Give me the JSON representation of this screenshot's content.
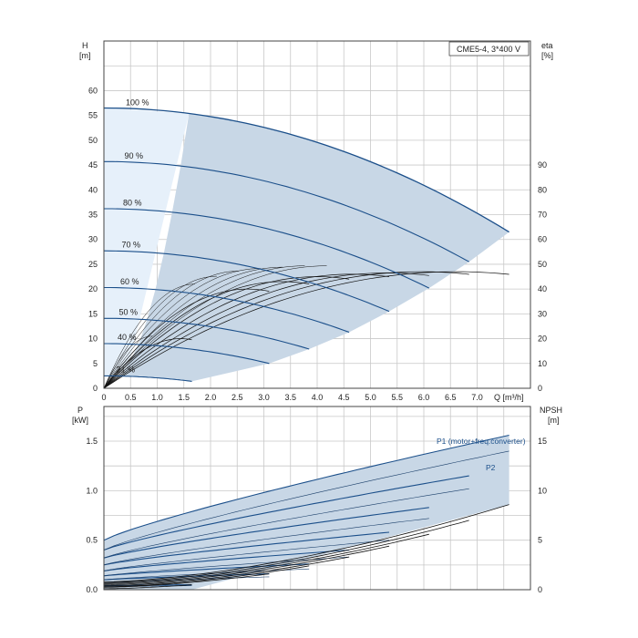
{
  "chart_data": [
    {
      "type": "line",
      "title": "CME5-4, 3*400 V",
      "xlabel": "Q [m³/h]",
      "ylabel_left": [
        "H",
        "[m]"
      ],
      "ylabel_right": [
        "eta",
        "[%]"
      ],
      "x_ticks": [
        "0",
        "0.5",
        "1.0",
        "1.5",
        "2.0",
        "2.5",
        "3.0",
        "3.5",
        "4.0",
        "4.5",
        "5.0",
        "5.5",
        "6.0",
        "6.5",
        "7.0"
      ],
      "x_tick_values": [
        0,
        0.5,
        1.0,
        1.5,
        2.0,
        2.5,
        3.0,
        3.5,
        4.0,
        4.5,
        5.0,
        5.5,
        6.0,
        6.5,
        7.0
      ],
      "y_ticks": [
        "0",
        "5",
        "10",
        "15",
        "20",
        "25",
        "30",
        "35",
        "40",
        "45",
        "50",
        "55",
        "60"
      ],
      "y_tick_values": [
        0,
        5,
        10,
        15,
        20,
        25,
        30,
        35,
        40,
        45,
        50,
        55,
        60
      ],
      "eta_ticks": [
        "0",
        "10",
        "20",
        "30",
        "40",
        "50",
        "60",
        "70",
        "80",
        "90"
      ],
      "eta_tick_values": [
        0,
        10,
        20,
        30,
        40,
        50,
        60,
        70,
        80,
        90
      ],
      "xlim": [
        0,
        8.0
      ],
      "ylim": [
        0,
        70
      ],
      "eta_lim": [
        0,
        140
      ],
      "grid": true,
      "series": [
        {
          "name": "100 %",
          "H0": 56.5,
          "Qmax": 7.6,
          "Hend": 31.5
        },
        {
          "name": "90 %",
          "H0": 45.7,
          "Qmax": 6.85,
          "Hend": 25.5
        },
        {
          "name": "80 %",
          "H0": 36.2,
          "Qmax": 6.1,
          "Hend": 20.2
        },
        {
          "name": "70 %",
          "H0": 27.7,
          "Qmax": 5.35,
          "Hend": 15.5
        },
        {
          "name": "60 %",
          "H0": 20.3,
          "Qmax": 4.6,
          "Hend": 11.3
        },
        {
          "name": "50 %",
          "H0": 14.1,
          "Qmax": 3.85,
          "Hend": 7.9
        },
        {
          "name": "40 %",
          "H0": 9.0,
          "Qmax": 3.1,
          "Hend": 5.0
        },
        {
          "name": "21 %",
          "H0": 2.5,
          "Qmax": 1.65,
          "Hend": 1.4
        }
      ],
      "eta_series": [
        {
          "eta_max": 47,
          "Qmax": 7.6
        },
        {
          "eta_max": 47,
          "Qmax": 6.85
        },
        {
          "eta_max": 46.5,
          "Qmax": 6.1
        },
        {
          "eta_max": 46,
          "Qmax": 5.35
        },
        {
          "eta_max": 45,
          "Qmax": 4.6
        },
        {
          "eta_max": 43,
          "Qmax": 3.85
        },
        {
          "eta_max": 40,
          "Qmax": 3.1
        },
        {
          "eta_max": 20,
          "Qmax": 1.65
        }
      ]
    },
    {
      "type": "line",
      "xlabel": "",
      "ylabel_left": [
        "P",
        "[kW]"
      ],
      "ylabel_right": [
        "NPSH",
        "[m]"
      ],
      "y_ticks": [
        "0.0",
        "0.5",
        "1.0",
        "1.5"
      ],
      "y_tick_values": [
        0,
        0.5,
        1.0,
        1.5
      ],
      "npsh_ticks": [
        "0",
        "5",
        "10",
        "15"
      ],
      "npsh_tick_values": [
        0,
        5,
        10,
        15
      ],
      "xlim": [
        0,
        8.0
      ],
      "ylim": [
        0,
        1.85
      ],
      "npsh_lim": [
        0,
        18.5
      ],
      "grid": true,
      "annotations": [
        "P1 (motor+freq.converter)",
        "P2"
      ],
      "p1_series": [
        {
          "P0": 0.5,
          "Qmax": 7.6,
          "Pend": 1.56
        },
        {
          "P0": 0.4,
          "Qmax": 6.85,
          "Pend": 1.15
        },
        {
          "P0": 0.32,
          "Qmax": 6.1,
          "Pend": 0.83
        },
        {
          "P0": 0.25,
          "Qmax": 5.35,
          "Pend": 0.58
        },
        {
          "P0": 0.19,
          "Qmax": 4.6,
          "Pend": 0.4
        },
        {
          "P0": 0.14,
          "Qmax": 3.85,
          "Pend": 0.26
        },
        {
          "P0": 0.1,
          "Qmax": 3.1,
          "Pend": 0.16
        },
        {
          "P0": 0.04,
          "Qmax": 1.65,
          "Pend": 0.05
        }
      ],
      "p2_series": [
        {
          "P0": 0.4,
          "Qmax": 7.6,
          "Pend": 1.4
        },
        {
          "P0": 0.32,
          "Qmax": 6.85,
          "Pend": 1.02
        },
        {
          "P0": 0.25,
          "Qmax": 6.1,
          "Pend": 0.72
        },
        {
          "P0": 0.19,
          "Qmax": 5.35,
          "Pend": 0.5
        },
        {
          "P0": 0.14,
          "Qmax": 4.6,
          "Pend": 0.33
        },
        {
          "P0": 0.1,
          "Qmax": 3.85,
          "Pend": 0.21
        },
        {
          "P0": 0.07,
          "Qmax": 3.1,
          "Pend": 0.13
        },
        {
          "P0": 0.03,
          "Qmax": 1.65,
          "Pend": 0.04
        }
      ],
      "npsh_series": [
        {
          "N0": 0.8,
          "Qmax": 7.6,
          "Nend": 8.6
        },
        {
          "N0": 0.7,
          "Qmax": 6.85,
          "Nend": 7.0
        },
        {
          "N0": 0.6,
          "Qmax": 6.1,
          "Nend": 5.6
        },
        {
          "N0": 0.5,
          "Qmax": 5.35,
          "Nend": 4.4
        },
        {
          "N0": 0.4,
          "Qmax": 4.6,
          "Nend": 3.3
        },
        {
          "N0": 0.3,
          "Qmax": 3.85,
          "Nend": 2.4
        },
        {
          "N0": 0.25,
          "Qmax": 3.1,
          "Nend": 1.6
        },
        {
          "N0": 0.1,
          "Qmax": 1.65,
          "Nend": 0.5
        }
      ]
    }
  ],
  "colors": {
    "curve": "#1b4f8a",
    "thin": "#1b3f6a",
    "region": "#c8d7e6",
    "region_light": "#e6f0fa",
    "grid": "#c8c8c8",
    "eta": "#111111"
  }
}
